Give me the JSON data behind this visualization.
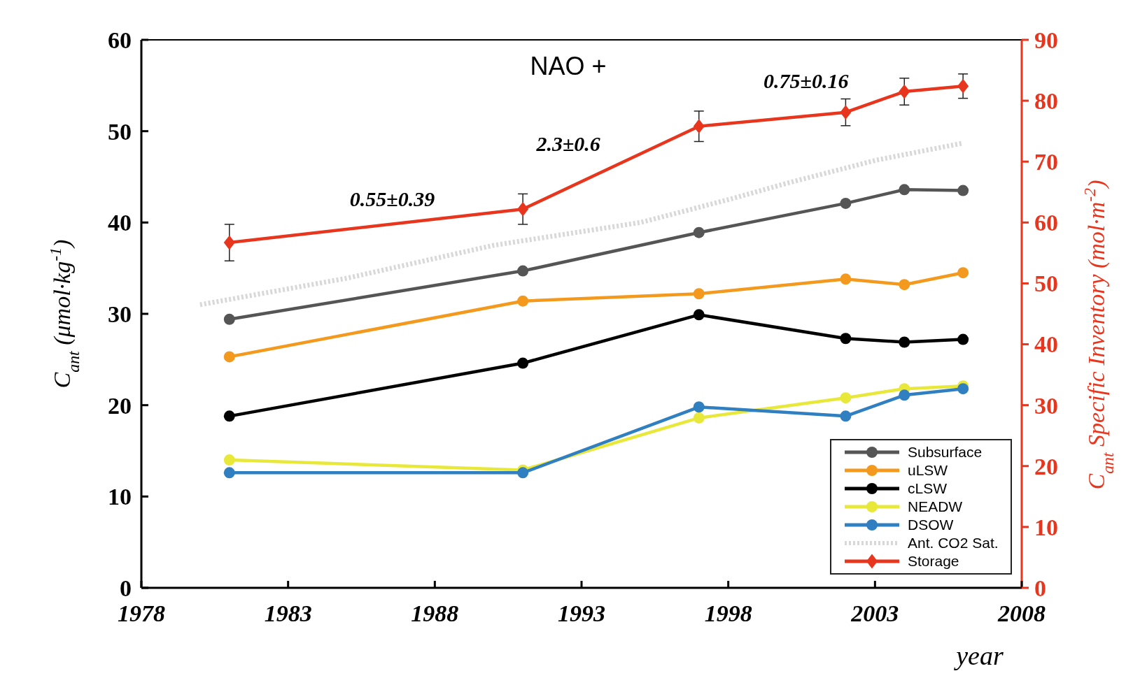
{
  "chart_data": {
    "type": "line",
    "xlabel": "year",
    "ylabel": "C$_{ant}$ (μmol·kg$^{-1}$)",
    "y2label": "C$_{ant}$ Specific Inventory (mol·m$^{-2}$)",
    "xlim": [
      1978,
      2008
    ],
    "xticks": [
      1978,
      1983,
      1988,
      1993,
      1998,
      2003,
      2008
    ],
    "ylim": [
      0,
      60
    ],
    "yticks": [
      0,
      10,
      20,
      30,
      40,
      50,
      60
    ],
    "y2lim": [
      0,
      90
    ],
    "y2ticks": [
      0,
      10,
      20,
      30,
      40,
      50,
      60,
      70,
      80,
      90
    ],
    "legend": "bottom right",
    "marker": "circle",
    "grid": false,
    "series": [
      {
        "name": "Subsurface",
        "color": "#555555",
        "x": [
          1981,
          1991,
          1997,
          2002,
          2004,
          2006
        ],
        "values": [
          29.4,
          34.7,
          38.9,
          42.1,
          43.6,
          43.5
        ]
      },
      {
        "name": "uLSW",
        "color": "#f39a1e",
        "x": [
          1981,
          1991,
          1997,
          2002,
          2004,
          2006
        ],
        "values": [
          25.3,
          31.4,
          32.2,
          33.8,
          33.2,
          34.5
        ]
      },
      {
        "name": "cLSW",
        "color": "#000000",
        "x": [
          1981,
          1991,
          1997,
          2002,
          2004,
          2006
        ],
        "values": [
          18.8,
          24.6,
          29.9,
          27.3,
          26.9,
          27.2
        ]
      },
      {
        "name": "NEADW",
        "color": "#e8e83a",
        "x": [
          1981,
          1991,
          1997,
          2002,
          2004,
          2006
        ],
        "values": [
          14.0,
          12.9,
          18.6,
          20.8,
          21.8,
          22.1
        ]
      },
      {
        "name": "DSOW",
        "color": "#2f7fc1",
        "x": [
          1981,
          1991,
          1997,
          2002,
          2004,
          2006
        ],
        "values": [
          12.6,
          12.6,
          19.8,
          18.8,
          21.1,
          21.8
        ]
      },
      {
        "name": "Ant. CO2 Sat.",
        "color": "#d8d8d8",
        "marker": "none",
        "line_style": "dotted",
        "x": [
          1980,
          1985,
          1990,
          1995,
          1998,
          2000,
          2003,
          2006
        ],
        "values": [
          31.0,
          33.9,
          37.5,
          40.0,
          42.5,
          44.3,
          46.8,
          48.7
        ]
      },
      {
        "name": "Storage",
        "color": "#e8361e",
        "marker": "diamond",
        "axis": "y2",
        "x": [
          1981,
          1991,
          1997,
          2002,
          2004,
          2006
        ],
        "values": [
          56.7,
          62.2,
          75.8,
          78.1,
          81.5,
          82.4
        ],
        "errors": [
          3,
          2.5,
          2.5,
          2.2,
          2.2,
          2
        ]
      }
    ],
    "annotations": [
      "NAO +",
      "0.55±0.39",
      "2.3±0.6",
      "0.75±0.16"
    ]
  }
}
